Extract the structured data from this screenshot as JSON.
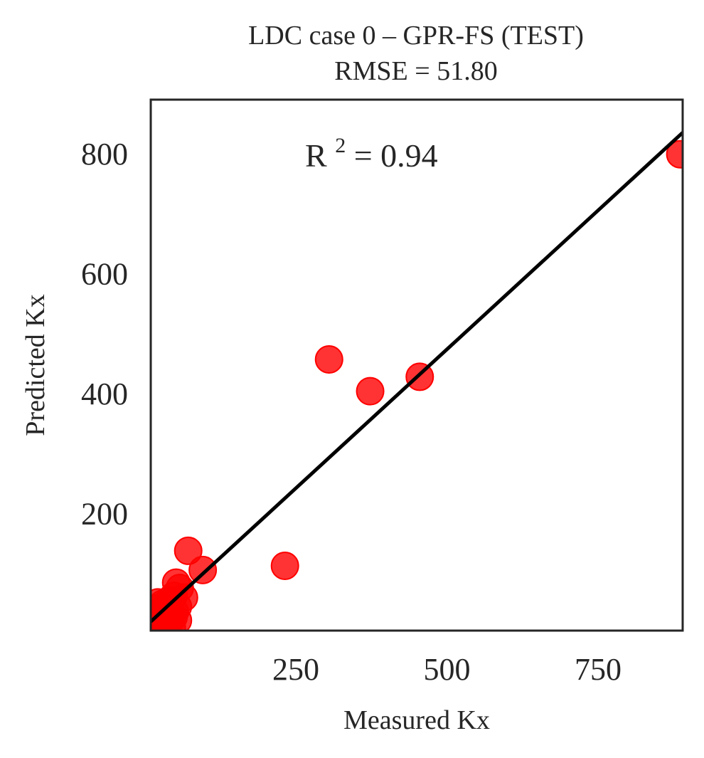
{
  "chart_data": {
    "type": "scatter",
    "title": "LDC case 0 – GPR-FS (TEST)",
    "subtitle": "RMSE = 51.80",
    "xlabel": "Measured Kx",
    "ylabel": "Predicted Kx",
    "xlim": [
      10,
      890
    ],
    "ylim": [
      5,
      890
    ],
    "xticks": [
      250,
      500,
      750
    ],
    "yticks": [
      200,
      400,
      600,
      800
    ],
    "annotation": {
      "r2_prefix": "R",
      "r2_sup": "2",
      "r2_value": " = 0.94"
    },
    "grid": false,
    "marker_color": "#ff0000",
    "line_color": "#000000",
    "fit_line": {
      "x": [
        10,
        890
      ],
      "y": [
        20,
        835
      ]
    },
    "points": [
      {
        "x": 305,
        "y": 457
      },
      {
        "x": 373,
        "y": 404
      },
      {
        "x": 455,
        "y": 428
      },
      {
        "x": 232,
        "y": 113
      },
      {
        "x": 886,
        "y": 799
      },
      {
        "x": 72,
        "y": 138
      },
      {
        "x": 96,
        "y": 106
      },
      {
        "x": 52,
        "y": 85
      },
      {
        "x": 58,
        "y": 76
      },
      {
        "x": 65,
        "y": 60
      },
      {
        "x": 48,
        "y": 63
      },
      {
        "x": 40,
        "y": 55
      },
      {
        "x": 30,
        "y": 50
      },
      {
        "x": 22,
        "y": 52
      },
      {
        "x": 18,
        "y": 42
      },
      {
        "x": 28,
        "y": 38
      },
      {
        "x": 42,
        "y": 40
      },
      {
        "x": 55,
        "y": 45
      },
      {
        "x": 35,
        "y": 30
      },
      {
        "x": 22,
        "y": 28
      },
      {
        "x": 48,
        "y": 28
      },
      {
        "x": 55,
        "y": 22
      },
      {
        "x": 15,
        "y": 22
      },
      {
        "x": 28,
        "y": 18
      },
      {
        "x": 40,
        "y": 16
      },
      {
        "x": 30,
        "y": 10
      },
      {
        "x": 45,
        "y": 10
      },
      {
        "x": 16,
        "y": 12
      },
      {
        "x": 50,
        "y": 36
      },
      {
        "x": 20,
        "y": 32
      }
    ]
  }
}
